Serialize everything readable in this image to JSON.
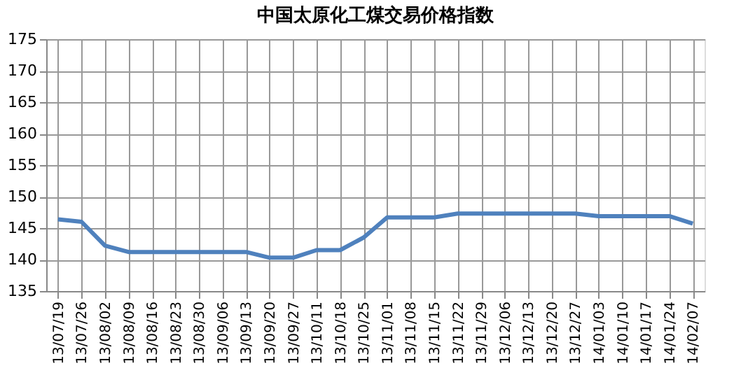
{
  "chart_data": {
    "type": "line",
    "title": "中国太原化工煤交易价格指数",
    "categories": [
      "13/07/19",
      "13/07/26",
      "13/08/02",
      "13/08/09",
      "13/08/16",
      "13/08/23",
      "13/08/30",
      "13/09/06",
      "13/09/13",
      "13/09/20",
      "13/09/27",
      "13/10/11",
      "13/10/18",
      "13/10/25",
      "13/11/01",
      "13/11/08",
      "13/11/15",
      "13/11/22",
      "13/11/29",
      "13/12/06",
      "13/12/13",
      "13/12/20",
      "13/12/27",
      "14/01/03",
      "14/01/10",
      "14/01/17",
      "14/01/24",
      "14/02/07"
    ],
    "series": [
      {
        "color": "#4f81bd",
        "values": [
          146.4,
          146.0,
          142.2,
          141.2,
          141.2,
          141.2,
          141.2,
          141.2,
          141.2,
          140.3,
          140.3,
          141.5,
          141.5,
          143.5,
          146.7,
          146.7,
          146.7,
          147.3,
          147.3,
          147.3,
          147.3,
          147.3,
          147.3,
          146.9,
          146.9,
          146.9,
          146.9,
          145.7
        ]
      }
    ],
    "ylim": [
      135,
      175
    ],
    "yticks": [
      135,
      140,
      145,
      150,
      155,
      160,
      165,
      170,
      175
    ],
    "grid": true,
    "legend": false,
    "marker": "none",
    "line_style": "solid"
  }
}
